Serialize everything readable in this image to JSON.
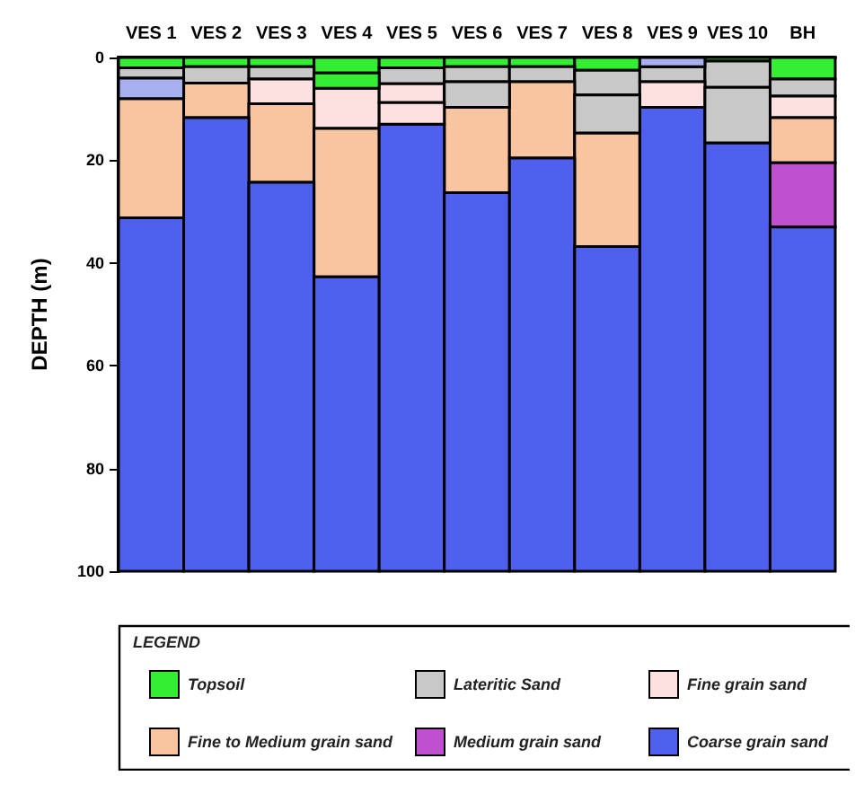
{
  "chart_data": {
    "type": "bar",
    "ylabel": "DEPTH (m)",
    "legend_title": "LEGEND",
    "legend": "bottom",
    "grid": false,
    "categories": [
      "VES 1",
      "VES 2",
      "VES 3",
      "VES 4",
      "VES 5",
      "VES 6",
      "VES 7",
      "VES 8",
      "VES 9",
      "VES 10",
      "BH"
    ],
    "ylim": [
      100,
      0
    ],
    "yticks": [
      0,
      20,
      40,
      60,
      80,
      100
    ],
    "series": [
      {
        "name": "Topsoil",
        "color": "#33ee33",
        "base": [
          0,
          0,
          0,
          0,
          0,
          0,
          0,
          0,
          null,
          0,
          0
        ],
        "values": [
          2,
          1.8,
          1.8,
          3,
          2,
          1.8,
          1.8,
          2.5,
          null,
          0.7,
          4.2
        ]
      },
      {
        "name": "Lateritic Sand",
        "color": "#c8c8c8",
        "base": [
          2,
          1.8,
          1.8,
          null,
          2,
          1.8,
          1.8,
          2.5,
          1.8,
          0.7,
          4.2
        ],
        "values": [
          2,
          3.2,
          2.4,
          null,
          3.1,
          2.9,
          2.9,
          4.8,
          2.9,
          5.1,
          3.3
        ]
      },
      {
        "name": "Fine grain sand",
        "color": "#fde0e0",
        "base": [
          null,
          null,
          4.2,
          6,
          5.1,
          null,
          null,
          null,
          4.7,
          null,
          7.5
        ],
        "values": [
          null,
          null,
          4.8,
          7.8,
          3.7,
          null,
          null,
          null,
          5,
          null,
          4.2
        ]
      },
      {
        "name": "Fine to Medium grain sand",
        "color": "#f9c4a0",
        "base": [
          8,
          5,
          9,
          13.8,
          null,
          9.7,
          4.7,
          14.7,
          null,
          null,
          11.7
        ],
        "values": [
          23.2,
          6.7,
          15.3,
          28.9,
          null,
          16.6,
          14.9,
          22.1,
          null,
          null,
          8.8
        ]
      },
      {
        "name": "Medium grain sand",
        "color": "#c050d0",
        "base": [
          null,
          null,
          null,
          null,
          null,
          null,
          null,
          null,
          null,
          null,
          20.5
        ],
        "values": [
          null,
          null,
          null,
          null,
          null,
          null,
          null,
          null,
          null,
          null,
          12.5
        ]
      },
      {
        "name": "Coarse grain sand",
        "color": "#5060ee",
        "base": [
          31.2,
          11.7,
          24.3,
          42.7,
          13,
          26.3,
          19.6,
          36.8,
          9.7,
          16.6,
          33
        ],
        "values": [
          68.8,
          88.3,
          75.7,
          57.3,
          87,
          73.7,
          80.4,
          63.2,
          90.3,
          83.4,
          67
        ]
      },
      {
        "color": "#33ee33",
        "base": [
          null,
          null,
          null,
          3,
          null,
          null,
          null,
          null,
          null,
          null,
          null
        ],
        "values": [
          null,
          null,
          null,
          3,
          null,
          null,
          null,
          null,
          null,
          null,
          null
        ]
      },
      {
        "color": "#c8c8c8",
        "base": [
          null,
          null,
          null,
          null,
          null,
          4.7,
          null,
          7.3,
          null,
          5.8,
          null
        ],
        "values": [
          null,
          null,
          null,
          null,
          null,
          5,
          null,
          7.4,
          null,
          10.8,
          null
        ]
      },
      {
        "color": "#fde0e0",
        "base": [
          null,
          null,
          null,
          null,
          8.8,
          null,
          null,
          null,
          null,
          null,
          null
        ],
        "values": [
          null,
          null,
          null,
          null,
          4.2,
          null,
          null,
          null,
          null,
          null,
          null
        ]
      },
      {
        "color": "#a8b0f0",
        "base": [
          4,
          null,
          null,
          null,
          null,
          null,
          null,
          null,
          0,
          null,
          null
        ],
        "values": [
          4,
          null,
          null,
          null,
          null,
          null,
          null,
          null,
          1.8,
          null,
          null
        ]
      }
    ]
  }
}
